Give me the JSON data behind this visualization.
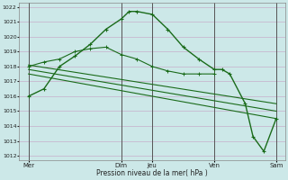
{
  "background_color": "#cce8e8",
  "grid_color": "#c8b8d0",
  "line_color": "#1a6b1a",
  "ylabel_min": 1012,
  "ylabel_max": 1022,
  "xlabel": "Pression niveau de la mer( hPa )",
  "xtick_labels": [
    "Mer",
    "Dim",
    "Jeu",
    "Ven",
    "Sam"
  ],
  "xtick_positions": [
    0,
    3,
    4,
    6,
    8
  ],
  "day_lines_x": [
    0,
    3,
    4,
    6,
    8
  ],
  "line1_x": [
    0,
    0.5,
    1.0,
    1.5,
    2.0,
    2.5,
    3.0,
    3.25,
    3.5,
    4.0,
    4.5,
    5.0,
    5.5,
    6.0,
    6.25,
    6.5,
    7.0,
    7.25,
    7.6,
    8.0
  ],
  "line1_y": [
    1016.0,
    1016.5,
    1018.0,
    1018.7,
    1019.5,
    1020.5,
    1021.2,
    1021.7,
    1021.7,
    1021.5,
    1020.5,
    1019.3,
    1018.5,
    1017.8,
    1017.8,
    1017.5,
    1015.5,
    1013.3,
    1012.3,
    1014.5
  ],
  "line2_x": [
    0.0,
    0.5,
    1.0,
    1.5,
    2.0,
    2.5,
    3.0,
    3.5,
    4.0,
    4.5,
    5.0,
    5.5,
    6.0
  ],
  "line2_y": [
    1018.0,
    1018.3,
    1018.5,
    1019.0,
    1019.2,
    1019.3,
    1018.8,
    1018.5,
    1018.0,
    1017.7,
    1017.5,
    1017.5,
    1017.5
  ],
  "line3_x": [
    0.0,
    8.0
  ],
  "line3_y": [
    1018.1,
    1015.5
  ],
  "line4_x": [
    0.0,
    8.0
  ],
  "line4_y": [
    1017.8,
    1015.0
  ],
  "line5_x": [
    0.0,
    8.0
  ],
  "line5_y": [
    1017.5,
    1014.5
  ]
}
